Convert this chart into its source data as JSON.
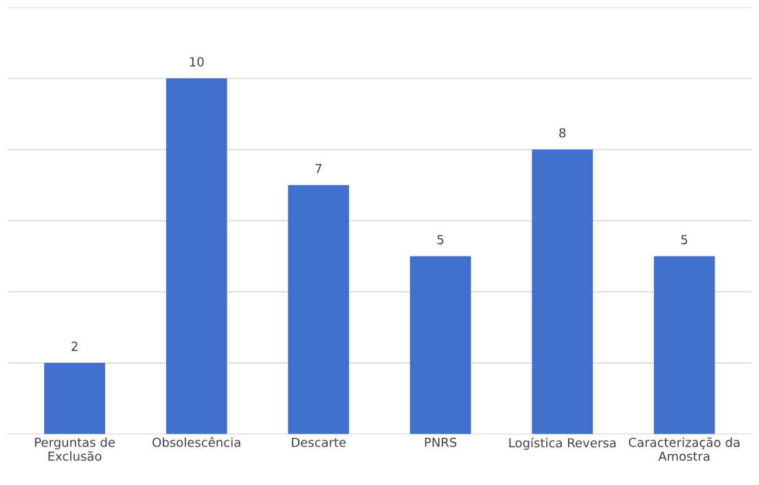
{
  "chart_data": {
    "type": "bar",
    "categories": [
      "Perguntas de\nExclusão",
      "Obsolescência",
      "Descarte",
      "PNRS",
      "Logística Reversa",
      "Caracterização da\nAmostra"
    ],
    "values": [
      2,
      10,
      7,
      5,
      8,
      5
    ],
    "color": "#4170cc",
    "data_labels": true,
    "ylim": [
      0,
      12
    ],
    "yticks": [
      {
        "value": 0,
        "label": null
      },
      {
        "value": 2,
        "label": null
      },
      {
        "value": 4,
        "label": null
      },
      {
        "value": 6,
        "label": null
      },
      {
        "value": 8,
        "label": null
      },
      {
        "value": 10,
        "label": null
      },
      {
        "value": 12,
        "label": null
      }
    ],
    "grid": "y"
  }
}
